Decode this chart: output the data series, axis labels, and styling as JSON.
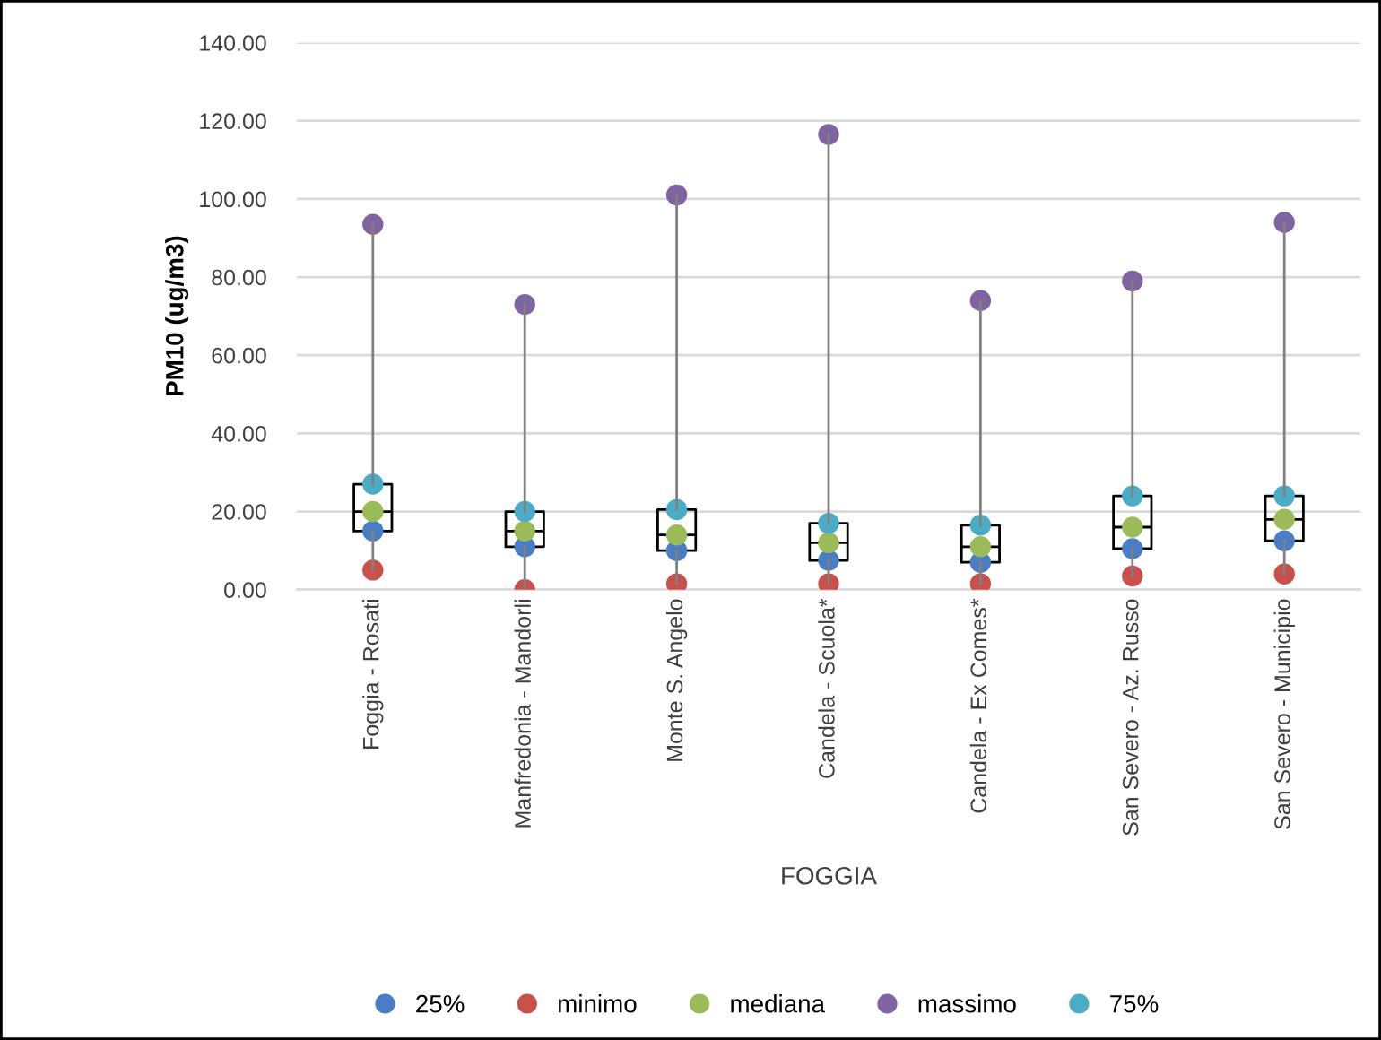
{
  "chart_data": {
    "type": "box",
    "xlabel": "FOGGIA",
    "ylabel": "PM10 (ug/m3)",
    "categories": [
      "Foggia - Rosati",
      "Manfredonia - Mandorli",
      "Monte S. Angelo",
      "Candela - Scuola*",
      "Candela - Ex Comes*",
      "San Severo - Az. Russo",
      "San Severo - Municipio"
    ],
    "boxes": [
      {
        "low": 5,
        "q1": 15,
        "median": 20,
        "q3": 27,
        "high": 93.5
      },
      {
        "low": 0,
        "q1": 11,
        "median": 15,
        "q3": 20,
        "high": 73
      },
      {
        "low": 1.5,
        "q1": 10,
        "median": 14,
        "q3": 20.5,
        "high": 101
      },
      {
        "low": 1.5,
        "q1": 7.5,
        "median": 12,
        "q3": 17,
        "high": 116.5
      },
      {
        "low": 1.5,
        "q1": 7,
        "median": 11,
        "q3": 16.5,
        "high": 74
      },
      {
        "low": 3.5,
        "q1": 10.5,
        "median": 16,
        "q3": 24,
        "high": 79
      },
      {
        "low": 4,
        "q1": 12.5,
        "median": 18,
        "q3": 24,
        "high": 94
      }
    ],
    "series": [
      {
        "name": "25%",
        "type": "scatter",
        "color": "#4a7ec4",
        "values": [
          15,
          11,
          10,
          7.5,
          7,
          10.5,
          12.5
        ]
      },
      {
        "name": "minimo",
        "type": "scatter",
        "color": "#c9504b",
        "values": [
          5,
          0,
          1.5,
          1.5,
          1.5,
          3.5,
          4
        ]
      },
      {
        "name": "mediana",
        "type": "scatter",
        "color": "#9bbb59",
        "values": [
          20,
          15,
          14,
          12,
          11,
          16,
          18
        ]
      },
      {
        "name": "massimo",
        "type": "scatter",
        "color": "#8064a2",
        "values": [
          93.5,
          73,
          101,
          116.5,
          74,
          79,
          94
        ]
      },
      {
        "name": "75%",
        "type": "scatter",
        "color": "#4bacc6",
        "values": [
          27,
          20,
          20.5,
          17,
          16.5,
          24,
          24
        ]
      }
    ],
    "ylim": [
      0,
      140
    ],
    "yticks": [
      {
        "value": 0,
        "label": "0.00"
      },
      {
        "value": 20,
        "label": "20.00"
      },
      {
        "value": 40,
        "label": "40.00"
      },
      {
        "value": 60,
        "label": "60.00"
      },
      {
        "value": 80,
        "label": "80.00"
      },
      {
        "value": 100,
        "label": "100.00"
      },
      {
        "value": 120,
        "label": "120.00"
      },
      {
        "value": 140,
        "label": "140.00"
      }
    ],
    "grid": "y",
    "legend": "bottom",
    "marker": "circle"
  }
}
